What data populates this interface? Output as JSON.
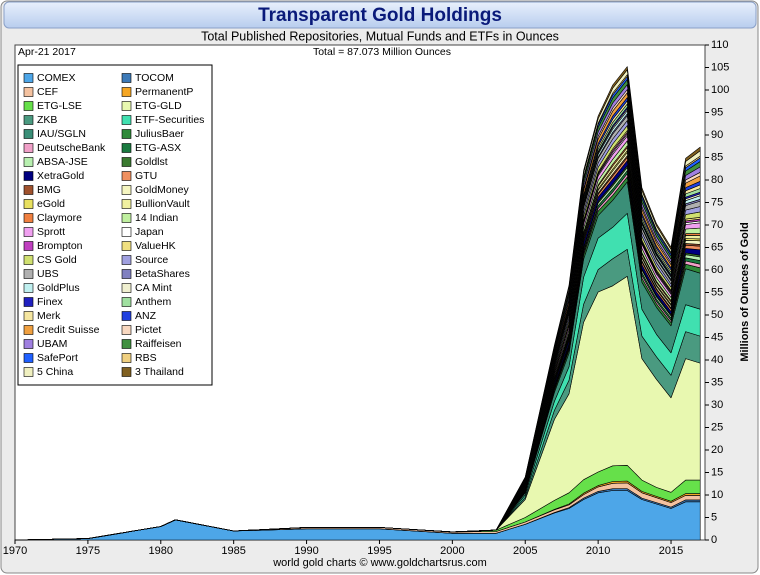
{
  "chart_data": {
    "type": "stacked-area",
    "title": "Transparent Gold Holdings",
    "subtitle": "Total Published Repositories, Mutual Funds and ETFs in Ounces",
    "date_label": "Apr-21  2017",
    "total_label": "Total = 87.073 Million Ounces",
    "ylabel": "Millions of Ounces of Gold",
    "footer": "world gold charts © www.goldchartsrus.com",
    "x": [
      1970,
      1975,
      1980,
      1981,
      1985,
      1990,
      1995,
      2000,
      2003,
      2005,
      2007,
      2008,
      2009,
      2010,
      2011,
      2012,
      2013,
      2014,
      2015,
      2016,
      2017
    ],
    "xlim": [
      1970,
      2017.33
    ],
    "xticks": [
      1970,
      1975,
      1980,
      1985,
      1990,
      1995,
      2000,
      2005,
      2010,
      2015
    ],
    "ylim": [
      0,
      110
    ],
    "yticks": [
      0,
      5,
      10,
      15,
      20,
      25,
      30,
      35,
      40,
      45,
      50,
      55,
      60,
      65,
      70,
      75,
      80,
      85,
      90,
      95,
      100,
      105,
      110
    ],
    "series": [
      {
        "name": "COMEX",
        "color": "#4da6e8",
        "values": [
          0,
          0.3,
          3,
          4.5,
          2,
          2.5,
          2.5,
          1.5,
          1.5,
          3.5,
          6,
          7,
          9,
          10.5,
          11,
          11,
          9,
          8,
          7,
          8.5,
          8.5
        ]
      },
      {
        "name": "TOCOM",
        "color": "#3d7ab8",
        "values": [
          0,
          0,
          0,
          0,
          0,
          0,
          0,
          0,
          0,
          0,
          0.1,
          0.2,
          0.3,
          0.3,
          0.4,
          0.4,
          0.3,
          0.3,
          0.3,
          0.4,
          0.4
        ]
      },
      {
        "name": "CEF",
        "color": "#f4c2a0",
        "values": [
          0,
          0,
          0,
          0,
          0,
          0.3,
          0.3,
          0.3,
          0.4,
          0.5,
          0.6,
          0.6,
          0.8,
          1,
          1.2,
          1.3,
          1.2,
          1.1,
          1,
          1,
          1
        ]
      },
      {
        "name": "PermanentP",
        "color": "#f5a623",
        "values": [
          0,
          0,
          0,
          0,
          0,
          0,
          0,
          0,
          0,
          0,
          0.1,
          0.2,
          0.3,
          0.3,
          0.4,
          0.4,
          0.3,
          0.3,
          0.3,
          0.4,
          0.4
        ]
      },
      {
        "name": "ETG-LSE",
        "color": "#66e04a",
        "values": [
          0,
          0,
          0,
          0,
          0,
          0,
          0,
          0,
          0.3,
          1,
          2,
          2.5,
          3,
          3,
          3.5,
          3.5,
          2.5,
          2,
          2,
          3,
          3
        ]
      },
      {
        "name": "ETG-GLD",
        "color": "#e8f8b0",
        "values": [
          0,
          0,
          0,
          0,
          0,
          0,
          0,
          0,
          0,
          4,
          18,
          22,
          35,
          40,
          40,
          42,
          27,
          24,
          21,
          27,
          26
        ]
      },
      {
        "name": "ZKB",
        "color": "#4a9a80",
        "values": [
          0,
          0,
          0,
          0,
          0,
          0,
          0,
          0,
          0,
          0.5,
          2,
          3,
          4,
          5,
          6,
          6,
          5,
          5,
          5,
          6,
          6
        ]
      },
      {
        "name": "ETF-Securities",
        "color": "#40e0b0",
        "values": [
          0,
          0,
          0,
          0,
          0,
          0,
          0,
          0,
          0,
          0.5,
          2,
          3,
          6,
          7,
          7,
          8,
          6,
          5,
          5,
          6,
          6
        ]
      },
      {
        "name": "IAU/SGLN",
        "color": "#3b8f78",
        "values": [
          0,
          0,
          0,
          0,
          0,
          0,
          0,
          0,
          0,
          0.5,
          2,
          3,
          4,
          5,
          6,
          7,
          6,
          6,
          6,
          8,
          8
        ]
      },
      {
        "name": "JuliusBaer",
        "color": "#2f8a3a",
        "values": [
          0,
          0,
          0,
          0,
          0,
          0,
          0,
          0,
          0,
          0.2,
          0.5,
          0.7,
          0.9,
          1,
          1.1,
          1.1,
          0.9,
          0.8,
          0.7,
          1,
          1.2
        ]
      },
      {
        "name": "DeutscheBank",
        "color": "#f0a0c8",
        "values": [
          0,
          0,
          0,
          0,
          0,
          0,
          0,
          0,
          0,
          0.1,
          0.3,
          0.4,
          0.5,
          0.6,
          0.7,
          0.7,
          0.6,
          0.5,
          0.5,
          0.7,
          0.8
        ]
      },
      {
        "name": "ETG-ASX",
        "color": "#1a7a40",
        "values": [
          0,
          0,
          0,
          0,
          0,
          0,
          0,
          0,
          0,
          0.1,
          0.3,
          0.4,
          0.5,
          0.6,
          0.7,
          0.7,
          0.6,
          0.5,
          0.5,
          0.7,
          0.8
        ]
      },
      {
        "name": "ABSA-JSE",
        "color": "#b8f0b0",
        "values": [
          0,
          0,
          0,
          0,
          0,
          0,
          0,
          0,
          0,
          0.1,
          0.3,
          0.4,
          0.5,
          0.6,
          0.7,
          0.7,
          0.6,
          0.5,
          0.5,
          0.7,
          0.8
        ]
      },
      {
        "name": "Goldlst",
        "color": "#3a7a30",
        "values": [
          0,
          0,
          0,
          0,
          0,
          0,
          0,
          0,
          0,
          0,
          0.1,
          0.2,
          0.3,
          0.3,
          0.4,
          0.4,
          0.3,
          0.3,
          0.3,
          0.4,
          0.4
        ]
      },
      {
        "name": "XetraGold",
        "color": "#000080",
        "values": [
          0,
          0,
          0,
          0,
          0,
          0,
          0,
          0,
          0,
          0.2,
          0.5,
          0.7,
          0.9,
          1,
          1.1,
          1.1,
          0.9,
          0.8,
          0.7,
          1,
          1.2
        ]
      },
      {
        "name": "GTU",
        "color": "#f09060",
        "values": [
          0,
          0,
          0,
          0,
          0,
          0,
          0,
          0,
          0,
          0.1,
          0.3,
          0.4,
          0.5,
          0.6,
          0.7,
          0.7,
          0.6,
          0.5,
          0.5,
          0.7,
          0.8
        ]
      },
      {
        "name": "BMG",
        "color": "#a0522d",
        "values": [
          0,
          0,
          0,
          0,
          0,
          0,
          0,
          0,
          0,
          0,
          0.1,
          0.2,
          0.3,
          0.3,
          0.4,
          0.4,
          0.3,
          0.3,
          0.3,
          0.4,
          0.4
        ]
      },
      {
        "name": "GoldMoney",
        "color": "#f5f5c0",
        "values": [
          0,
          0,
          0,
          0,
          0,
          0,
          0,
          0,
          0,
          0.1,
          0.3,
          0.4,
          0.5,
          0.6,
          0.7,
          0.7,
          0.6,
          0.5,
          0.5,
          0.7,
          0.8
        ]
      },
      {
        "name": "eGold",
        "color": "#e8e060",
        "values": [
          0,
          0,
          0,
          0,
          0,
          0,
          0,
          0,
          0,
          0,
          0.1,
          0.2,
          0.3,
          0.3,
          0.4,
          0.4,
          0.3,
          0.3,
          0.3,
          0.4,
          0.4
        ]
      },
      {
        "name": "BullionVault",
        "color": "#f0f0a0",
        "values": [
          0,
          0,
          0,
          0,
          0,
          0,
          0,
          0,
          0,
          0.1,
          0.3,
          0.4,
          0.5,
          0.6,
          0.7,
          0.7,
          0.6,
          0.5,
          0.5,
          0.7,
          0.8
        ]
      },
      {
        "name": "Claymore",
        "color": "#f08040",
        "values": [
          0,
          0,
          0,
          0,
          0,
          0,
          0,
          0,
          0,
          0,
          0.1,
          0.2,
          0.3,
          0.3,
          0.4,
          0.4,
          0.3,
          0.3,
          0.3,
          0.4,
          0.4
        ]
      },
      {
        "name": "14 Indian",
        "color": "#c0f0a0",
        "values": [
          0,
          0,
          0,
          0,
          0,
          0,
          0,
          0,
          0,
          0.2,
          0.5,
          0.7,
          0.9,
          1,
          1.1,
          1.1,
          0.9,
          0.8,
          0.7,
          1,
          1.2
        ]
      },
      {
        "name": "Sprott",
        "color": "#f0a0f0",
        "values": [
          0,
          0,
          0,
          0,
          0,
          0,
          0,
          0,
          0,
          0.2,
          0.5,
          0.7,
          0.9,
          1,
          1.1,
          1.1,
          0.9,
          0.8,
          0.7,
          1,
          1.2
        ]
      },
      {
        "name": "Japan",
        "color": "#ffffff",
        "values": [
          0,
          0,
          0,
          0,
          0,
          0,
          0,
          0,
          0,
          0,
          0.1,
          0.2,
          0.3,
          0.3,
          0.4,
          0.4,
          0.3,
          0.3,
          0.3,
          0.4,
          0.4
        ]
      },
      {
        "name": "Brompton",
        "color": "#c040c0",
        "values": [
          0,
          0,
          0,
          0,
          0,
          0,
          0,
          0,
          0,
          0,
          0.1,
          0.2,
          0.3,
          0.3,
          0.4,
          0.4,
          0.3,
          0.3,
          0.3,
          0.4,
          0.4
        ]
      },
      {
        "name": "ValueHK",
        "color": "#f0e080",
        "values": [
          0,
          0,
          0,
          0,
          0,
          0,
          0,
          0,
          0,
          0,
          0.1,
          0.2,
          0.3,
          0.3,
          0.4,
          0.4,
          0.3,
          0.3,
          0.3,
          0.4,
          0.4
        ]
      },
      {
        "name": "CS Gold",
        "color": "#d0e070",
        "values": [
          0,
          0,
          0,
          0,
          0,
          0,
          0,
          0,
          0,
          0.2,
          0.5,
          0.7,
          0.9,
          1,
          1.1,
          1.1,
          0.9,
          0.8,
          0.7,
          1,
          1.2
        ]
      },
      {
        "name": "Source",
        "color": "#a0a0e0",
        "values": [
          0,
          0,
          0,
          0,
          0,
          0,
          0,
          0,
          0,
          0.2,
          0.5,
          0.7,
          0.9,
          1,
          1.1,
          1.1,
          0.9,
          0.8,
          0.7,
          1,
          1.2
        ]
      },
      {
        "name": "UBS",
        "color": "#b0b0b0",
        "values": [
          0,
          0,
          0,
          0,
          0,
          0,
          0,
          0,
          0,
          0.2,
          0.5,
          0.7,
          0.9,
          1,
          1.1,
          1.1,
          0.9,
          0.8,
          0.7,
          1,
          1.2
        ]
      },
      {
        "name": "BetaShares",
        "color": "#8080c0",
        "values": [
          0,
          0,
          0,
          0,
          0,
          0,
          0,
          0,
          0,
          0,
          0.1,
          0.2,
          0.3,
          0.3,
          0.4,
          0.4,
          0.3,
          0.3,
          0.3,
          0.4,
          0.4
        ]
      },
      {
        "name": "GoldPlus",
        "color": "#c0f0f0",
        "values": [
          0,
          0,
          0,
          0,
          0,
          0,
          0,
          0,
          0,
          0.1,
          0.3,
          0.4,
          0.5,
          0.6,
          0.7,
          0.7,
          0.6,
          0.5,
          0.5,
          0.7,
          0.8
        ]
      },
      {
        "name": "CA Mint",
        "color": "#f0f0d0",
        "values": [
          0,
          0,
          0,
          0,
          0,
          0,
          0,
          0,
          0,
          0,
          0.1,
          0.2,
          0.3,
          0.3,
          0.4,
          0.4,
          0.3,
          0.3,
          0.3,
          0.4,
          0.4
        ]
      },
      {
        "name": "Finex",
        "color": "#2020c0",
        "values": [
          0,
          0,
          0,
          0,
          0,
          0,
          0,
          0,
          0,
          0,
          0.1,
          0.2,
          0.3,
          0.3,
          0.4,
          0.4,
          0.3,
          0.3,
          0.3,
          0.4,
          0.4
        ]
      },
      {
        "name": "Anthem",
        "color": "#a0e0a0",
        "values": [
          0,
          0,
          0,
          0,
          0,
          0,
          0,
          0,
          0,
          0.1,
          0.3,
          0.4,
          0.5,
          0.6,
          0.7,
          0.7,
          0.6,
          0.5,
          0.5,
          0.7,
          0.8
        ]
      },
      {
        "name": "Merk",
        "color": "#f5e6a0",
        "values": [
          0,
          0,
          0,
          0,
          0,
          0,
          0,
          0,
          0,
          0.1,
          0.3,
          0.4,
          0.5,
          0.6,
          0.7,
          0.7,
          0.6,
          0.5,
          0.5,
          0.7,
          0.8
        ]
      },
      {
        "name": "ANZ",
        "color": "#2040e0",
        "values": [
          0,
          0,
          0,
          0,
          0,
          0,
          0,
          0,
          0,
          0.1,
          0.3,
          0.4,
          0.5,
          0.6,
          0.7,
          0.7,
          0.6,
          0.5,
          0.5,
          0.7,
          0.8
        ]
      },
      {
        "name": "Credit Suisse",
        "color": "#f0a040",
        "values": [
          0,
          0,
          0,
          0,
          0,
          0,
          0,
          0,
          0,
          0.2,
          0.5,
          0.7,
          0.9,
          1,
          1.1,
          1.1,
          0.9,
          0.8,
          0.7,
          1,
          1.2
        ]
      },
      {
        "name": "Pictet",
        "color": "#f8d8c0",
        "values": [
          0,
          0,
          0,
          0,
          0,
          0,
          0,
          0,
          0,
          0.1,
          0.3,
          0.4,
          0.5,
          0.6,
          0.7,
          0.7,
          0.6,
          0.5,
          0.5,
          0.7,
          0.8
        ]
      },
      {
        "name": "UBAM",
        "color": "#a080e0",
        "values": [
          0,
          0,
          0,
          0,
          0,
          0,
          0,
          0,
          0,
          0.2,
          0.5,
          0.7,
          0.9,
          1,
          1.1,
          1.1,
          0.9,
          0.8,
          0.7,
          1,
          1.2
        ]
      },
      {
        "name": "Raiffeisen",
        "color": "#409040",
        "values": [
          0,
          0,
          0,
          0,
          0,
          0,
          0,
          0,
          0,
          0.2,
          0.5,
          0.7,
          0.9,
          1,
          1.1,
          1.1,
          0.9,
          0.8,
          0.7,
          1,
          1.2
        ]
      },
      {
        "name": "SafePort",
        "color": "#2060ff",
        "values": [
          0,
          0,
          0,
          0,
          0,
          0,
          0,
          0,
          0,
          0.1,
          0.3,
          0.4,
          0.5,
          0.6,
          0.7,
          0.7,
          0.6,
          0.5,
          0.5,
          0.7,
          0.8
        ]
      },
      {
        "name": "RBS",
        "color": "#f0d080",
        "values": [
          0,
          0,
          0,
          0,
          0,
          0,
          0,
          0,
          0,
          0,
          0.1,
          0.2,
          0.3,
          0.3,
          0.4,
          0.4,
          0.3,
          0.3,
          0.3,
          0.4,
          0.4
        ]
      },
      {
        "name": "5 China",
        "color": "#f0f0c0",
        "values": [
          0,
          0,
          0,
          0,
          0,
          0,
          0,
          0,
          0,
          0.2,
          0.5,
          0.7,
          0.9,
          1,
          1.1,
          1.1,
          0.9,
          0.8,
          0.7,
          1,
          1.2
        ]
      },
      {
        "name": "3 Thailand",
        "color": "#806020",
        "values": [
          0,
          0,
          0,
          0,
          0,
          0,
          0,
          0,
          0,
          0.1,
          0.3,
          0.4,
          0.5,
          0.6,
          0.7,
          0.7,
          0.6,
          0.5,
          0.5,
          0.7,
          0.8
        ]
      }
    ]
  }
}
